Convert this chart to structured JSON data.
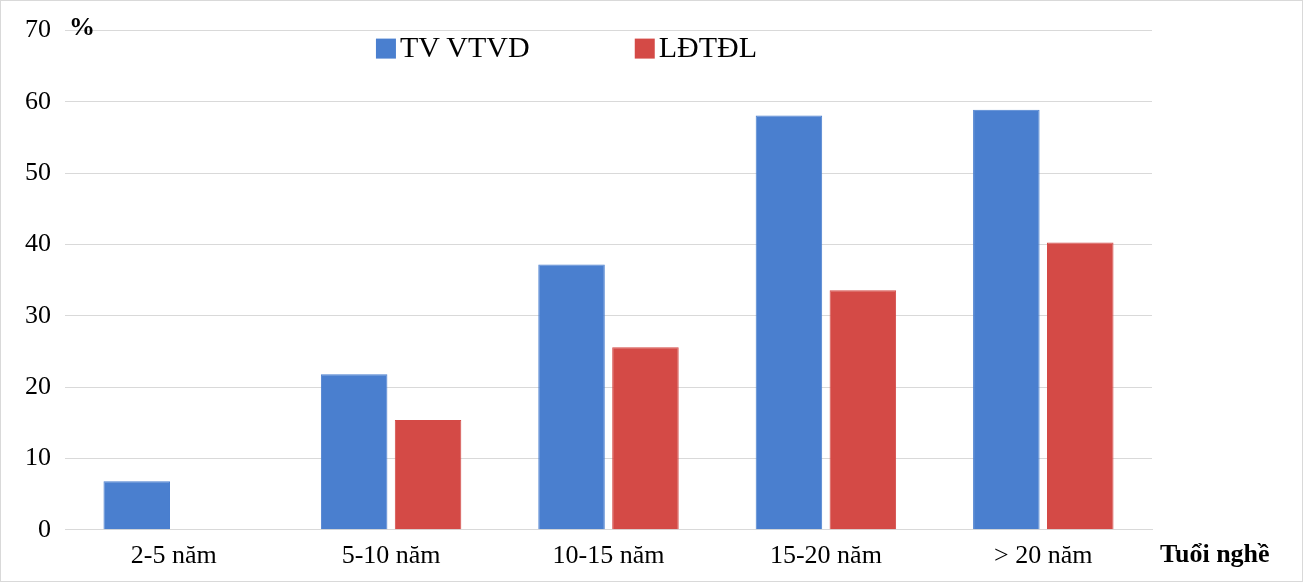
{
  "chart_data": {
    "type": "bar",
    "ylabel": "%",
    "xlabel": "Tuổi nghề",
    "categories": [
      "2-5 năm",
      "5-10 năm",
      "10-15 năm",
      "15-20 năm",
      "> 20 năm"
    ],
    "series": [
      {
        "name": "TV VTVD",
        "color": "#4a7fcf",
        "values": [
          6.8,
          21.8,
          37.2,
          58.1,
          58.9
        ]
      },
      {
        "name": "LĐTĐL",
        "color": "#d44a46",
        "values": [
          0,
          15.4,
          25.6,
          33.6,
          40.3
        ]
      }
    ],
    "ylim": [
      0,
      70
    ],
    "yticks": [
      0,
      10,
      20,
      30,
      40,
      50,
      60,
      70
    ],
    "grid": "y",
    "legend": "top"
  }
}
